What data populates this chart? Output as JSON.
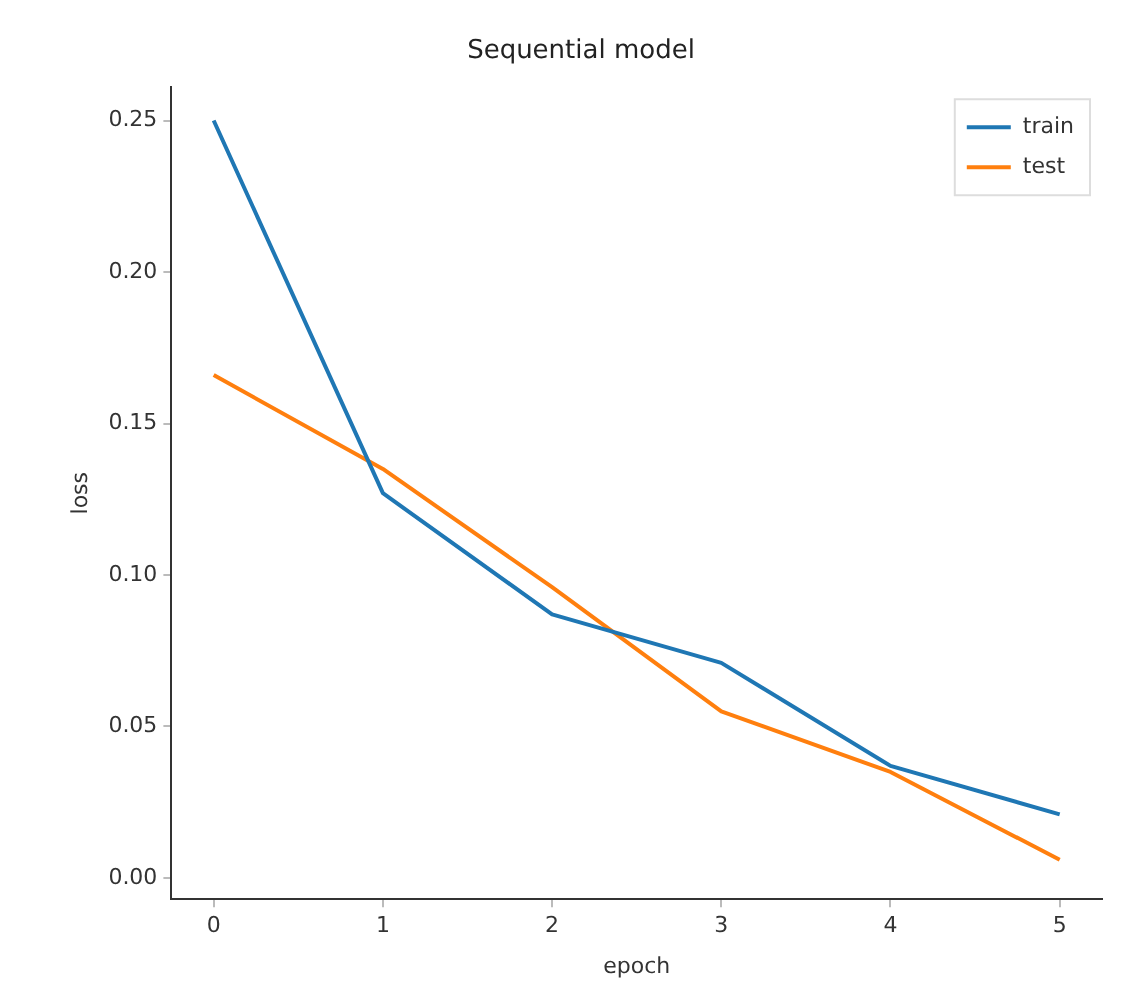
{
  "chart_data": {
    "type": "line",
    "title": "Sequential model",
    "xlabel": "epoch",
    "ylabel": "loss",
    "x": [
      0,
      1,
      2,
      3,
      4,
      5
    ],
    "series": [
      {
        "name": "train",
        "color": "#1f77b4",
        "values": [
          0.25,
          0.127,
          0.087,
          0.071,
          0.037,
          0.021
        ]
      },
      {
        "name": "test",
        "color": "#ff7f0e",
        "values": [
          0.166,
          0.135,
          0.096,
          0.055,
          0.035,
          0.006
        ]
      }
    ],
    "xlim": [
      -0.25,
      5.25
    ],
    "xticks": [
      0,
      1,
      2,
      3,
      4,
      5
    ],
    "ylim": [
      -0.007,
      0.261
    ],
    "yticks": [
      {
        "value": 0,
        "label": "0.00"
      },
      {
        "value": 0.05,
        "label": "0.05"
      },
      {
        "value": 0.1,
        "label": "0.10"
      },
      {
        "value": 0.15,
        "label": "0.15"
      },
      {
        "value": 0.2,
        "label": "0.20"
      },
      {
        "value": 0.25,
        "label": "0.25"
      }
    ],
    "grid": false,
    "legend": "top right",
    "marker": "none",
    "line_style": "solid"
  }
}
